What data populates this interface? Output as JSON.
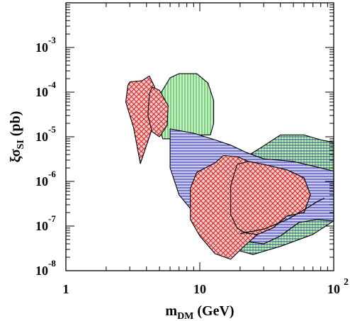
{
  "chart_data": {
    "type": "area",
    "title": "",
    "xlabel": {
      "base": "m",
      "sub": "DM",
      "unit": "(GeV)"
    },
    "ylabel": {
      "base": "ξσ",
      "sub": "SI",
      "unit": "(pb)"
    },
    "x_scale": "log",
    "y_scale": "log",
    "xlim": [
      1,
      100
    ],
    "ylim": [
      1e-08,
      0.01
    ],
    "x_ticks": [
      {
        "value": 1,
        "label": "1"
      },
      {
        "value": 10,
        "label": "10"
      },
      {
        "value": 100,
        "label": "10",
        "exp": "2"
      }
    ],
    "y_ticks": [
      {
        "value": 1e-08,
        "label": "10",
        "exp": "-8"
      },
      {
        "value": 1e-07,
        "label": "10",
        "exp": "-7"
      },
      {
        "value": 1e-06,
        "label": "10",
        "exp": "-6"
      },
      {
        "value": 1e-05,
        "label": "10",
        "exp": "-5"
      },
      {
        "value": 0.0001,
        "label": "10",
        "exp": "-4"
      },
      {
        "value": 0.001,
        "label": "10",
        "exp": "-3"
      }
    ],
    "grid": false,
    "legend": "none",
    "series": [
      {
        "color": "#22aa22",
        "fill": "#c8f0c8",
        "pattern": "vertical",
        "points": [
          [
            4.8,
            7e-05
          ],
          [
            6.0,
            0.00021
          ],
          [
            7.0,
            0.00026
          ],
          [
            9.5,
            0.00026
          ],
          [
            11.5,
            0.00016
          ],
          [
            12.7,
            6.5e-05
          ],
          [
            12.7,
            2e-05
          ],
          [
            12.0,
            1.1e-05
          ],
          [
            8.0,
            1.1e-05
          ],
          [
            6.5,
            9e-06
          ],
          [
            5.3,
            9e-06
          ],
          [
            4.8,
            2e-05
          ]
        ]
      },
      {
        "color": "#22aa22",
        "fill": "#c8f0c8",
        "pattern": "both",
        "points": [
          [
            28,
            5.5e-06
          ],
          [
            40,
            1.1e-05
          ],
          [
            60,
            1.1e-05
          ],
          [
            80,
            8.5e-06
          ],
          [
            100,
            7.5e-06
          ],
          [
            100,
            1.3e-07
          ],
          [
            70,
            6.5e-08
          ],
          [
            40,
            3.5e-08
          ],
          [
            25,
            2.3e-08
          ],
          [
            18,
            3e-08
          ],
          [
            15,
            1.5e-07
          ],
          [
            18,
            2.4e-06
          ]
        ]
      },
      {
        "color": "#1a1a99",
        "fill": "#c8c8f0",
        "pattern": "horizontal",
        "points": [
          [
            6,
            1.5e-05
          ],
          [
            9,
            1.2e-05
          ],
          [
            13,
            8.5e-06
          ],
          [
            17,
            6.5e-06
          ],
          [
            22,
            4.5e-06
          ],
          [
            30,
            3.2e-06
          ],
          [
            50,
            2.8e-06
          ],
          [
            75,
            2.1e-06
          ],
          [
            100,
            1.7e-06
          ],
          [
            100,
            1.3e-07
          ],
          [
            75,
            1.4e-07
          ],
          [
            55,
            1.2e-07
          ],
          [
            40,
            6e-08
          ],
          [
            30,
            4e-08
          ],
          [
            22,
            4.5e-08
          ],
          [
            17,
            6e-08
          ],
          [
            12,
            1.3e-07
          ],
          [
            9,
            2e-07
          ],
          [
            7,
            5e-07
          ],
          [
            6,
            2e-06
          ]
        ]
      },
      {
        "color": "#cc1111",
        "fill": "#f5c8c8",
        "pattern": "crosshatch",
        "points": [
          [
            3.0,
            0.00017
          ],
          [
            3.7,
            0.00018
          ],
          [
            4.2,
            0.00023
          ],
          [
            4.6,
            0.00013
          ],
          [
            4.8,
            5e-05
          ],
          [
            4.4,
            1.5e-05
          ],
          [
            3.6,
            2.5e-06
          ],
          [
            3.2,
            1.6e-05
          ],
          [
            2.8,
            6e-05
          ],
          [
            2.9,
            0.00014
          ]
        ]
      },
      {
        "color": "#cc1111",
        "fill": "#f5c8c8",
        "pattern": "crosshatch",
        "points": [
          [
            4.4,
            0.00013
          ],
          [
            5.0,
            0.00011
          ],
          [
            5.8,
            5e-05
          ],
          [
            5.7,
            1.8e-05
          ],
          [
            5.0,
            1e-05
          ],
          [
            4.4,
            1.3e-05
          ],
          [
            4.1,
            3e-05
          ],
          [
            4.2,
            9e-05
          ]
        ]
      },
      {
        "color": "#cc1111",
        "fill": "#f5c8c8",
        "pattern": "crosshatch",
        "points": [
          [
            13,
            2.6e-06
          ],
          [
            15,
            3.8e-06
          ],
          [
            19,
            3.6e-06
          ],
          [
            23,
            2.8e-06
          ],
          [
            30,
            2.4e-06
          ],
          [
            45,
            1.8e-06
          ],
          [
            60,
            1.2e-06
          ],
          [
            67,
            5e-07
          ],
          [
            60,
            2e-07
          ],
          [
            45,
            1.7e-07
          ],
          [
            35,
            9e-08
          ],
          [
            27,
            6.5e-08
          ],
          [
            22,
            3.8e-08
          ],
          [
            17,
            1.8e-08
          ],
          [
            13,
            2.4e-08
          ],
          [
            10,
            6e-08
          ],
          [
            8.5,
            1.4e-07
          ],
          [
            8.5,
            7e-07
          ],
          [
            9.5,
            1.6e-06
          ]
        ]
      },
      {
        "color": "#cc1111",
        "fill": "#f5c8c8",
        "pattern": "crosshatch",
        "points": [
          [
            19,
            2.4e-06
          ],
          [
            23,
            2.8e-06
          ],
          [
            30,
            2.4e-06
          ],
          [
            45,
            1.8e-06
          ],
          [
            60,
            1.2e-06
          ],
          [
            67,
            5e-07
          ],
          [
            60,
            2e-07
          ],
          [
            45,
            1.7e-07
          ],
          [
            35,
            9e-08
          ],
          [
            27,
            6.5e-08
          ],
          [
            22,
            7e-08
          ],
          [
            19,
            9e-08
          ],
          [
            17,
            1.8e-07
          ],
          [
            17,
            8e-07
          ]
        ]
      },
      {
        "color": "#000000",
        "fill": "none",
        "pattern": "line",
        "points": [
          [
            20,
            6.8e-08
          ],
          [
            30,
            8.5e-08
          ],
          [
            45,
            1.4e-07
          ],
          [
            60,
            2.3e-07
          ],
          [
            75,
            3.5e-07
          ],
          [
            85,
            4.2e-07
          ]
        ]
      }
    ]
  }
}
